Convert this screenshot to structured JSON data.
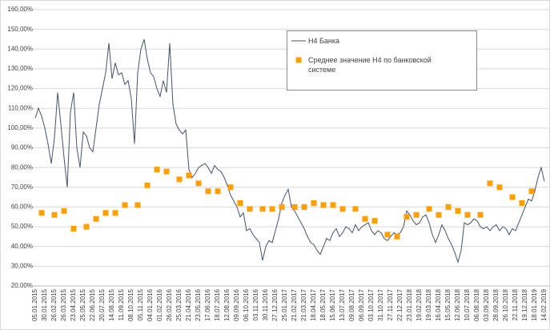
{
  "chart_data": {
    "type": "line",
    "categories": [
      "05.01.2015",
      null,
      null,
      "30.01.2015",
      null,
      null,
      "26.02.2015",
      null,
      null,
      "26.03.2015",
      null,
      null,
      "23.04.2015",
      null,
      null,
      "25.05.2015",
      null,
      null,
      "22.06.2015",
      null,
      null,
      "20.07.2015",
      null,
      null,
      "14.08.2015",
      null,
      null,
      "11.09.2015",
      null,
      null,
      "08.10.2015",
      null,
      null,
      "05.11.2015",
      null,
      null,
      "04.01.2016",
      null,
      null,
      "01.02.2016",
      null,
      null,
      "26.02.2016",
      null,
      null,
      "25.03.2016",
      null,
      null,
      "21.04.2016",
      null,
      null,
      "23.05.2016",
      null,
      null,
      "17.06.2016",
      null,
      null,
      "18.07.2016",
      null,
      null,
      "12.08.2016",
      null,
      null,
      "09.09.2016",
      null,
      null,
      "06.10.2016",
      null,
      null,
      "03.11.2016",
      null,
      null,
      "30.11.2016",
      null,
      null,
      "27.12.2016",
      null,
      null,
      "25.01.2017",
      null,
      null,
      "21.02.2017",
      null,
      null,
      "21.03.2017",
      null,
      null,
      "18.04.2017",
      null,
      null,
      "18.05.2017",
      null,
      null,
      "15.06.2017",
      null,
      null,
      "13.07.2017",
      null,
      null,
      "09.08.2017",
      null,
      null,
      "06.09.2017",
      null,
      null,
      "03.10.2017",
      null,
      null,
      "31.10.2017",
      null,
      null,
      "27.11.2017",
      null,
      null,
      "22.12.2017",
      null,
      null,
      "23.01.2018",
      null,
      null,
      "19.02.2018",
      null,
      null,
      "19.03.2018",
      null,
      null,
      "16.04.2018",
      null,
      null,
      "15.05.2018",
      null,
      null,
      "12.06.2018",
      null,
      null,
      "10.07.2018",
      null,
      null,
      "06.08.2018",
      null,
      null,
      "03.09.2018",
      null,
      null,
      "28.09.2018",
      null,
      null,
      "26.10.2018",
      null,
      null,
      "22.11.2018",
      null,
      null,
      "19.12.2018",
      null,
      null,
      "18.01.2019",
      null,
      null,
      "14.02.2019"
    ],
    "series": [
      {
        "name": "Н4 Банка",
        "color": "#44546a",
        "style": "line",
        "values": [
          105,
          110,
          106,
          100,
          92,
          82,
          95,
          118,
          102,
          85,
          70,
          108,
          118,
          90,
          80,
          98,
          96,
          90,
          88,
          100,
          112,
          120,
          128,
          143,
          125,
          133,
          127,
          128,
          122,
          124,
          115,
          92,
          128,
          140,
          145,
          135,
          128,
          126,
          120,
          116,
          124,
          118,
          143,
          112,
          102,
          99,
          97,
          99,
          79,
          75,
          77,
          80,
          81,
          82,
          80,
          77,
          81,
          79,
          78,
          75,
          71,
          66,
          63,
          60,
          55,
          57,
          48,
          49,
          46,
          44,
          42,
          33,
          40,
          43,
          42,
          48,
          54,
          62,
          66,
          69,
          60,
          58,
          55,
          52,
          49,
          45,
          42,
          41,
          38,
          36,
          40,
          44,
          43,
          47,
          49,
          45,
          47,
          50,
          49,
          47,
          51,
          48,
          50,
          51,
          52,
          48,
          46,
          48,
          47,
          44,
          43,
          45,
          47,
          46,
          47,
          50,
          58,
          56,
          53,
          51,
          52,
          55,
          56,
          52,
          46,
          42,
          46,
          51,
          48,
          44,
          41,
          37,
          32,
          38,
          52,
          51,
          52,
          54,
          53,
          50,
          49,
          50,
          48,
          50,
          51,
          48,
          50,
          49,
          46,
          49,
          48,
          52,
          56,
          60,
          64,
          63,
          68,
          75,
          80,
          73
        ]
      },
      {
        "name": "Среднее значение Н4 по банковской системе",
        "color": "#ffa000",
        "style": "markers",
        "values": [
          null,
          null,
          57,
          null,
          null,
          null,
          56,
          null,
          null,
          58,
          null,
          null,
          49,
          null,
          null,
          null,
          50,
          null,
          null,
          54,
          null,
          null,
          57,
          null,
          null,
          57,
          null,
          null,
          61,
          null,
          null,
          null,
          61,
          null,
          null,
          71,
          null,
          null,
          79,
          null,
          null,
          78,
          null,
          null,
          null,
          74,
          null,
          null,
          76,
          null,
          null,
          72,
          null,
          null,
          68,
          null,
          null,
          68,
          null,
          null,
          null,
          70,
          null,
          null,
          62,
          null,
          null,
          59,
          null,
          null,
          null,
          59,
          null,
          null,
          59,
          null,
          null,
          60,
          null,
          null,
          null,
          60,
          null,
          null,
          60,
          null,
          null,
          62,
          null,
          null,
          61,
          null,
          null,
          61,
          null,
          null,
          59,
          null,
          null,
          null,
          59,
          null,
          null,
          54,
          null,
          null,
          53,
          null,
          null,
          null,
          46,
          null,
          null,
          45,
          null,
          null,
          55,
          null,
          null,
          56,
          null,
          null,
          null,
          59,
          null,
          null,
          56,
          null,
          null,
          60,
          null,
          null,
          58,
          null,
          null,
          56,
          null,
          null,
          null,
          56,
          null,
          null,
          72,
          null,
          null,
          70,
          null,
          null,
          null,
          65,
          null,
          null,
          62,
          null,
          null,
          68,
          null,
          null,
          null,
          null
        ]
      }
    ],
    "ylim": [
      20,
      160
    ],
    "yticks": [
      {
        "value": 20,
        "label": "20,00%"
      },
      {
        "value": 30,
        "label": "30,00%"
      },
      {
        "value": 40,
        "label": "40,00%"
      },
      {
        "value": 50,
        "label": "50,00%"
      },
      {
        "value": 60,
        "label": "60,00%"
      },
      {
        "value": 70,
        "label": "70,00%"
      },
      {
        "value": 80,
        "label": "80,00%"
      },
      {
        "value": 90,
        "label": "90,00%"
      },
      {
        "value": 100,
        "label": "100,00%"
      },
      {
        "value": 110,
        "label": "110,00%"
      },
      {
        "value": 120,
        "label": "120,00%"
      },
      {
        "value": 130,
        "label": "130,00%"
      },
      {
        "value": 140,
        "label": "140,00%"
      },
      {
        "value": 150,
        "label": "150,00%"
      },
      {
        "value": 160,
        "label": "160,00%"
      }
    ],
    "grid": true,
    "legend": "top-right"
  }
}
